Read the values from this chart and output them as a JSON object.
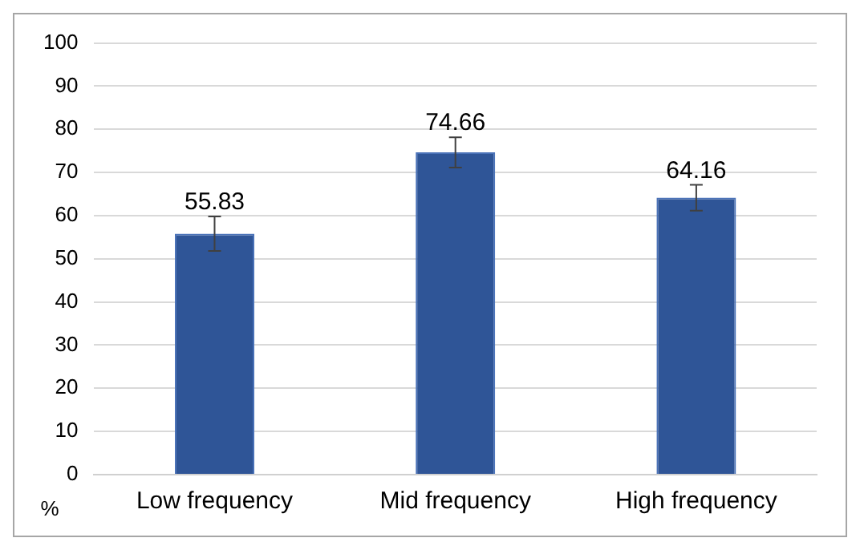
{
  "chart_data": {
    "type": "bar",
    "ylabel": "%",
    "categories": [
      "Low frequency",
      "Mid frequency",
      "High frequency"
    ],
    "values": [
      55.83,
      74.66,
      64.16
    ],
    "color": "#2f5597",
    "errors": [
      4,
      3.5,
      3
    ],
    "data_labels": true,
    "ylim": [
      0,
      100
    ],
    "yticks": [
      0,
      10,
      20,
      30,
      40,
      50,
      60,
      70,
      80,
      90,
      100
    ],
    "grid": "y"
  }
}
